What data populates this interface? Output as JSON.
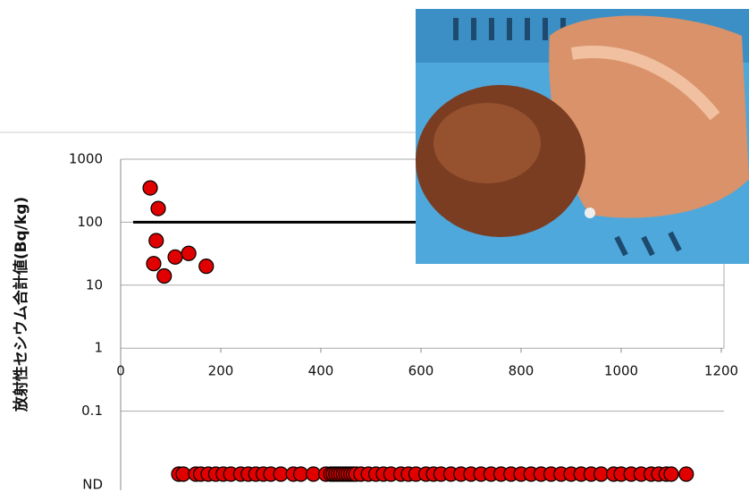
{
  "chart_data": {
    "type": "scatter",
    "y_label": "放射性セシウム合計値(Bq/kg)",
    "log_y": true,
    "grid": true,
    "xlim": [
      0,
      1200
    ],
    "xticks": [
      0,
      200,
      400,
      600,
      800,
      1000,
      1200
    ],
    "ylim": [
      0.01,
      1000
    ],
    "yticks": [
      {
        "value": 0.01,
        "label": "ND"
      },
      0.1,
      1,
      10,
      100,
      1000
    ],
    "reference_line": {
      "y": 100,
      "x": [
        25,
        1200
      ],
      "color": "#000000"
    },
    "series": [
      {
        "color": "#e00000",
        "x": [
          59,
          75,
          71,
          66,
          87,
          109,
          136,
          171
        ],
        "values": [
          350,
          165,
          51,
          22,
          14,
          28,
          32,
          20
        ]
      },
      {
        "color": "#e00000",
        "x": [
          116,
          125,
          150,
          160,
          175,
          190,
          205,
          220,
          240,
          255,
          270,
          285,
          300,
          320,
          345,
          360,
          385,
          410,
          420,
          425,
          430,
          435,
          440,
          445,
          450,
          455,
          460,
          465,
          470,
          480,
          495,
          510,
          525,
          540,
          560,
          575,
          590,
          610,
          625,
          640,
          660,
          680,
          700,
          720,
          740,
          760,
          780,
          800,
          820,
          840,
          860,
          880,
          900,
          920,
          940,
          960,
          985,
          1000,
          1020,
          1040,
          1060,
          1075,
          1090,
          1100,
          1130
        ],
        "values": [
          0.01,
          0.01,
          0.01,
          0.01,
          0.01,
          0.01,
          0.01,
          0.01,
          0.01,
          0.01,
          0.01,
          0.01,
          0.01,
          0.01,
          0.01,
          0.01,
          0.01,
          0.01,
          0.01,
          0.01,
          0.01,
          0.01,
          0.01,
          0.01,
          0.01,
          0.01,
          0.01,
          0.01,
          0.01,
          0.01,
          0.01,
          0.01,
          0.01,
          0.01,
          0.01,
          0.01,
          0.01,
          0.01,
          0.01,
          0.01,
          0.01,
          0.01,
          0.01,
          0.01,
          0.01,
          0.01,
          0.01,
          0.01,
          0.01,
          0.01,
          0.01,
          0.01,
          0.01,
          0.01,
          0.01,
          0.01,
          0.01,
          0.01,
          0.01,
          0.01,
          0.01,
          0.01,
          0.01,
          0.01,
          0.01
        ]
      }
    ]
  }
}
